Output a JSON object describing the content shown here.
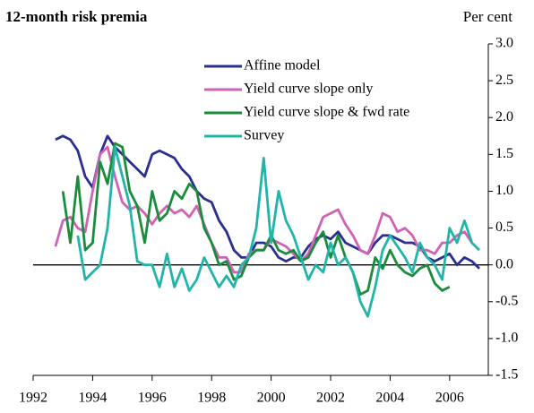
{
  "chart_data": {
    "type": "line",
    "title": "12-month risk premia",
    "y_unit": "Per cent",
    "x": [
      1992.75,
      1993,
      1993.25,
      1993.5,
      1993.75,
      1994,
      1994.25,
      1994.5,
      1994.75,
      1995,
      1995.25,
      1995.5,
      1995.75,
      1996,
      1996.25,
      1996.5,
      1996.75,
      1997,
      1997.25,
      1997.5,
      1997.75,
      1998,
      1998.25,
      1998.5,
      1998.75,
      1999,
      1999.25,
      1999.5,
      1999.75,
      2000,
      2000.25,
      2000.5,
      2000.75,
      2001,
      2001.25,
      2001.5,
      2001.75,
      2002,
      2002.25,
      2002.5,
      2002.75,
      2003,
      2003.25,
      2003.5,
      2003.75,
      2004,
      2004.25,
      2004.5,
      2004.75,
      2005,
      2005.25,
      2005.5,
      2005.75,
      2006,
      2006.25,
      2006.5,
      2006.75,
      2007
    ],
    "series": [
      {
        "name": "Affine model",
        "color": "#2b2f8f",
        "values": [
          1.7,
          1.75,
          1.7,
          1.55,
          1.2,
          1.05,
          1.5,
          1.75,
          1.6,
          1.5,
          1.4,
          1.3,
          1.2,
          1.5,
          1.55,
          1.5,
          1.45,
          1.3,
          1.2,
          1.0,
          0.9,
          0.85,
          0.6,
          0.45,
          0.2,
          0.1,
          0.1,
          0.3,
          0.3,
          0.25,
          0.1,
          0.05,
          0.1,
          0.1,
          0.25,
          0.35,
          0.4,
          0.35,
          0.45,
          0.3,
          0.25,
          0.2,
          0.15,
          0.3,
          0.4,
          0.4,
          0.35,
          0.3,
          0.3,
          0.25,
          0.1,
          0.05,
          0.1,
          0.15,
          0.0,
          0.1,
          0.05,
          -0.05
        ]
      },
      {
        "name": "Yield curve slope only",
        "color": "#d062b3",
        "values": [
          0.25,
          0.6,
          0.65,
          0.5,
          0.45,
          1.0,
          1.5,
          1.6,
          1.2,
          0.85,
          0.75,
          0.8,
          0.7,
          0.55,
          0.7,
          0.8,
          0.7,
          0.75,
          0.65,
          0.8,
          0.55,
          0.3,
          0.1,
          0.1,
          -0.1,
          -0.1,
          0.15,
          0.2,
          0.2,
          0.35,
          0.3,
          0.25,
          0.15,
          0.05,
          0.15,
          0.4,
          0.65,
          0.7,
          0.75,
          0.55,
          0.4,
          0.2,
          0.15,
          0.4,
          0.7,
          0.65,
          0.45,
          0.5,
          0.4,
          0.2,
          0.2,
          0.15,
          0.3,
          0.3,
          0.4,
          0.45,
          0.3,
          null
        ]
      },
      {
        "name": "Yield curve slope & fwd rate",
        "color": "#1a8c3c",
        "values": [
          null,
          1.0,
          0.3,
          1.2,
          0.2,
          0.3,
          1.4,
          1.1,
          1.65,
          1.6,
          1.0,
          0.8,
          0.3,
          1.0,
          0.6,
          0.7,
          1.0,
          0.9,
          1.1,
          1.0,
          0.5,
          0.3,
          0.0,
          0.05,
          -0.2,
          -0.15,
          0.1,
          0.2,
          0.2,
          0.4,
          0.2,
          0.15,
          0.2,
          0.05,
          0.1,
          0.3,
          0.45,
          0.1,
          0.4,
          0.1,
          -0.1,
          -0.4,
          -0.35,
          0.1,
          -0.05,
          0.2,
          0.0,
          -0.1,
          -0.15,
          -0.05,
          0.0,
          -0.25,
          -0.35,
          -0.3,
          null,
          null,
          null,
          null
        ]
      },
      {
        "name": "Survey",
        "color": "#21b5a9",
        "values": [
          null,
          null,
          null,
          0.4,
          -0.2,
          -0.1,
          0.0,
          0.5,
          1.6,
          1.2,
          0.8,
          0.05,
          0.0,
          0.0,
          -0.3,
          0.15,
          -0.3,
          -0.05,
          -0.35,
          -0.2,
          0.1,
          -0.1,
          -0.3,
          -0.15,
          -0.3,
          0.0,
          0.1,
          0.5,
          1.45,
          0.3,
          1.0,
          0.6,
          0.4,
          0.1,
          -0.2,
          0.0,
          -0.1,
          0.3,
          0.0,
          0.1,
          -0.1,
          -0.5,
          -0.7,
          -0.3,
          0.2,
          0.4,
          0.25,
          0.1,
          -0.1,
          0.3,
          0.1,
          0.0,
          -0.2,
          0.5,
          0.3,
          0.6,
          0.3,
          0.2
        ]
      }
    ],
    "xlim": [
      1992,
      2007.3
    ],
    "xticks": [
      1992,
      1994,
      1996,
      1998,
      2000,
      2002,
      2004,
      2006
    ],
    "ylim": [
      -1.5,
      3.0
    ],
    "yticks": [
      {
        "value": -1.5,
        "label": "-1.5"
      },
      {
        "value": -1.0,
        "label": "-1.0"
      },
      {
        "value": -0.5,
        "label": "-0.5"
      },
      {
        "value": 0,
        "label": "0.0"
      },
      {
        "value": 0.5,
        "label": "0.5"
      },
      {
        "value": 1.0,
        "label": "1.0"
      },
      {
        "value": 1.5,
        "label": "1.5"
      },
      {
        "value": 2.0,
        "label": "2.0"
      },
      {
        "value": 2.5,
        "label": "2.5"
      },
      {
        "value": 3.0,
        "label": "3.0"
      }
    ],
    "y_axis_side": "right",
    "zero_line": true,
    "grid": false,
    "legend": "top-center"
  }
}
